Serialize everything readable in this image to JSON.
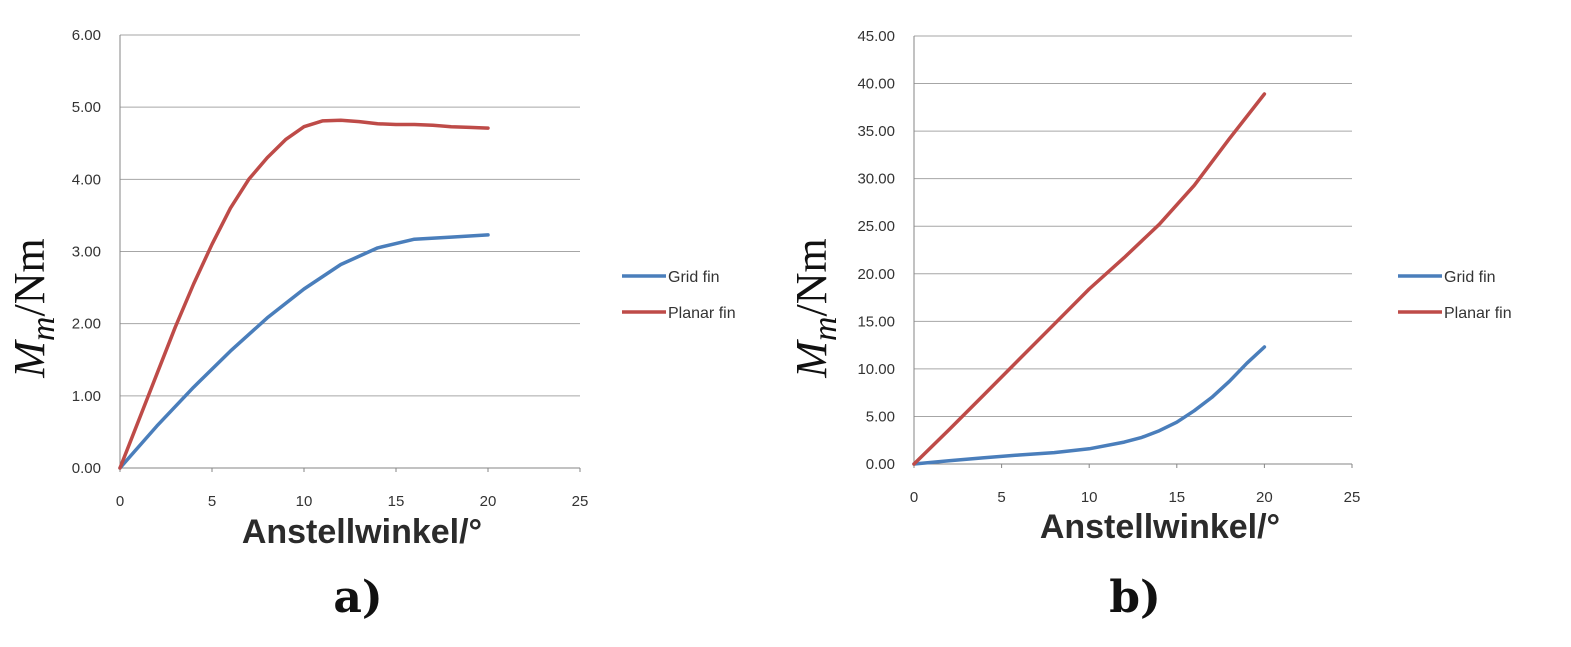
{
  "colors": {
    "grid_fin": "#4a7ebb",
    "planar_fin": "#be4b48",
    "gridline": "#a6a6a6",
    "axis": "#868686"
  },
  "chart_data": [
    {
      "type": "line",
      "panel_label": "a)",
      "xlabel": "Anstellwinkel/°",
      "ylabel": {
        "symbol": "M",
        "subscript": "m",
        "unit": "/Nm"
      },
      "xlim": [
        0,
        25
      ],
      "ylim": [
        0,
        6
      ],
      "x_ticks": [
        "0",
        "5",
        "10",
        "15",
        "20",
        "25"
      ],
      "y_ticks": [
        "0.00",
        "1.00",
        "2.00",
        "3.00",
        "4.00",
        "5.00",
        "6.00"
      ],
      "grid": true,
      "legend": "right",
      "series": [
        {
          "name": "Grid fin",
          "color": "#4a7ebb",
          "x": [
            0,
            2,
            4,
            6,
            8,
            10,
            12,
            14,
            16,
            18,
            20
          ],
          "y": [
            0,
            0.58,
            1.12,
            1.62,
            2.08,
            2.48,
            2.82,
            3.05,
            3.17,
            3.2,
            3.23
          ]
        },
        {
          "name": "Planar fin",
          "color": "#be4b48",
          "x": [
            0,
            1,
            2,
            3,
            4,
            5,
            6,
            7,
            8,
            9,
            10,
            11,
            12,
            13,
            14,
            15,
            16,
            17,
            18,
            19,
            20
          ],
          "y": [
            0,
            0.65,
            1.3,
            1.95,
            2.55,
            3.1,
            3.6,
            4.0,
            4.3,
            4.55,
            4.73,
            4.81,
            4.82,
            4.8,
            4.77,
            4.76,
            4.76,
            4.75,
            4.73,
            4.72,
            4.71
          ]
        }
      ]
    },
    {
      "type": "line",
      "panel_label": "b)",
      "xlabel": "Anstellwinkel/°",
      "ylabel": {
        "symbol": "M",
        "subscript": "m",
        "unit": "/Nm"
      },
      "xlim": [
        0,
        25
      ],
      "ylim": [
        0,
        45
      ],
      "x_ticks": [
        "0",
        "5",
        "10",
        "15",
        "20",
        "25"
      ],
      "y_ticks": [
        "0.00",
        "5.00",
        "10.00",
        "15.00",
        "20.00",
        "25.00",
        "30.00",
        "35.00",
        "40.00",
        "45.00"
      ],
      "grid": true,
      "legend": "right",
      "series": [
        {
          "name": "Grid fin",
          "color": "#4a7ebb",
          "x": [
            0,
            2,
            4,
            6,
            8,
            10,
            12,
            13,
            14,
            15,
            16,
            17,
            18,
            19,
            20
          ],
          "y": [
            0,
            0.35,
            0.65,
            0.95,
            1.2,
            1.6,
            2.3,
            2.8,
            3.5,
            4.4,
            5.6,
            7.0,
            8.7,
            10.6,
            12.3
          ]
        },
        {
          "name": "Planar fin",
          "color": "#be4b48",
          "x": [
            0,
            2,
            4,
            6,
            8,
            10,
            12,
            14,
            16,
            18,
            20
          ],
          "y": [
            0,
            3.6,
            7.3,
            11.0,
            14.7,
            18.4,
            21.7,
            25.2,
            29.3,
            34.2,
            38.9
          ]
        }
      ]
    }
  ]
}
